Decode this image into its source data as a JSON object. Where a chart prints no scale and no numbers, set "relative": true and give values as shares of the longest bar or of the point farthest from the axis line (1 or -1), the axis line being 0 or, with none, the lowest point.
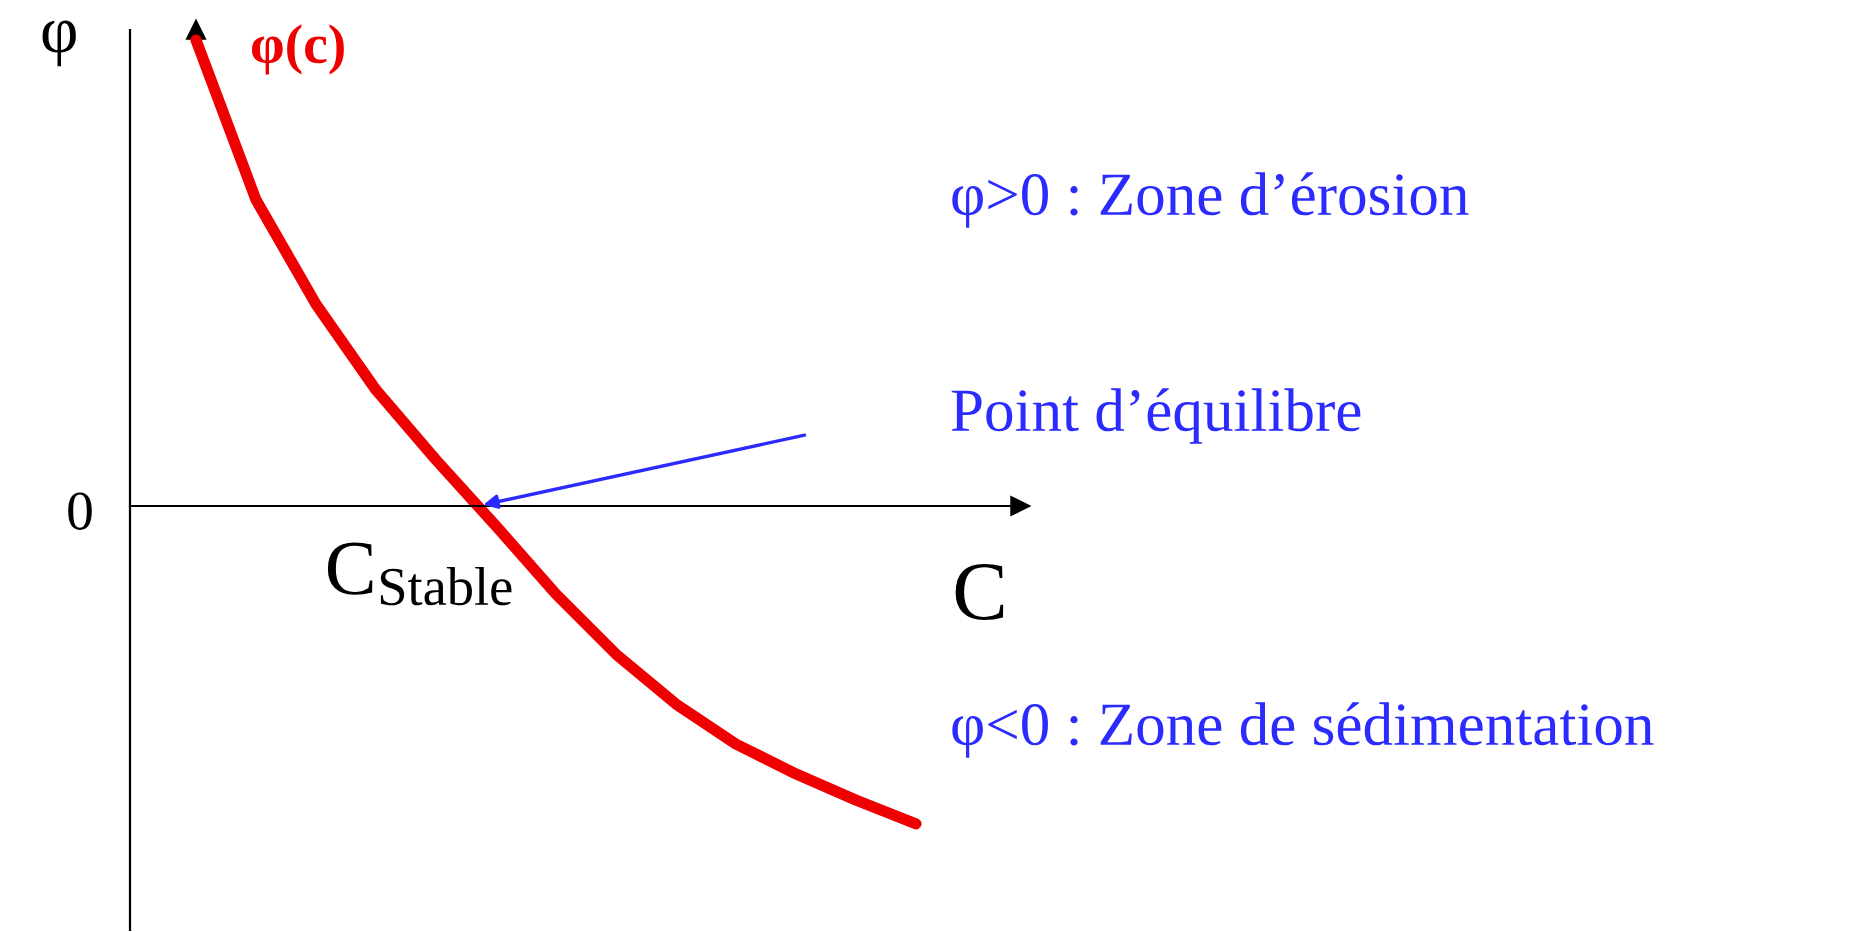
{
  "chart_data": {
    "type": "line",
    "relative": true,
    "ylabel": "φ",
    "xlabel": "C",
    "categories": [
      null,
      null,
      null,
      null,
      null,
      null,
      null,
      null,
      null,
      null,
      null,
      null,
      null
    ],
    "series": [
      {
        "name": "φ(c)",
        "color": "#ee0000",
        "values": [
          1,
          0.657,
          0.433,
          0.249,
          0.099,
          -0.043,
          -0.189,
          -0.318,
          -0.425,
          -0.511,
          -0.575,
          -0.631,
          -0.682
        ]
      }
    ],
    "annotations": [
      "0",
      "C$_{Stable}$",
      "φ>0 : Zone d’érosion",
      "Point d’équilibre",
      "φ<0 : Zone de sédimentation"
    ],
    "marker": "none",
    "line_style": "solid",
    "grid": false,
    "legend": false
  }
}
